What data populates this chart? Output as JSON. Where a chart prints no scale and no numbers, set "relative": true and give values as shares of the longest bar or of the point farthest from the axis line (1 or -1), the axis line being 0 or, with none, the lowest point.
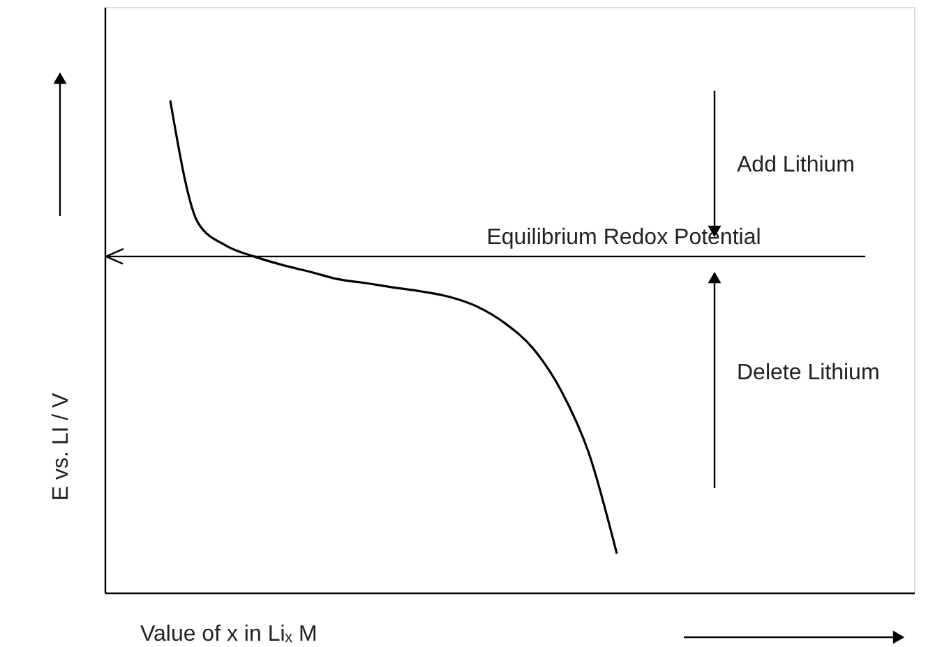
{
  "chart_data": {
    "type": "line",
    "relative": true,
    "xlabel": "Value of x in Liₓ M",
    "ylabel": "E vs. LI / V",
    "categories": [
      null,
      null,
      null,
      null,
      null,
      null,
      null,
      null,
      null,
      null,
      null,
      null,
      null,
      null,
      null,
      null,
      null
    ],
    "series": [
      {
        "color": "#000000",
        "values": [
          1.0,
          0.751,
          0.705,
          0.683,
          0.666,
          0.652,
          0.637,
          0.629,
          0.62,
          0.612,
          0.601,
          0.581,
          0.547,
          0.496,
          0.411,
          0.283,
          0.079
        ]
      }
    ],
    "ref_lines": [
      {
        "axis": "y",
        "value": 0.683,
        "label": "Equilibrium Redox Potential",
        "color": "#000000",
        "line_style": "solid"
      }
    ],
    "annotations": [
      "Add Lithium",
      "Delete Lithium"
    ],
    "grid": false,
    "marker": "none",
    "line_style": "solid"
  }
}
